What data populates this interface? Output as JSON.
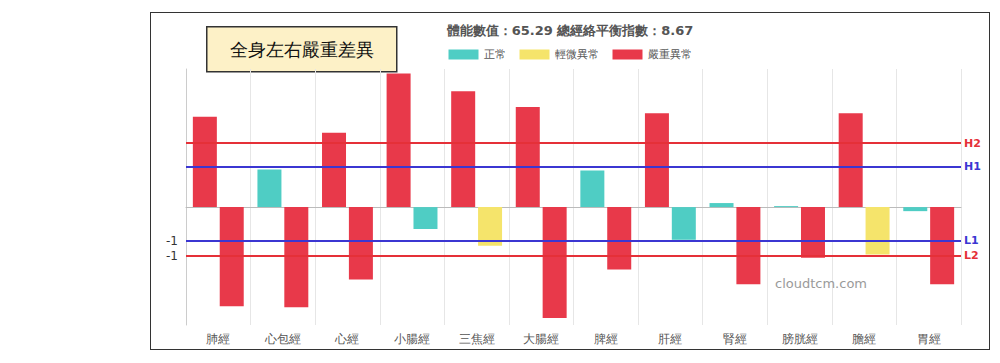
{
  "chart_data": {
    "type": "bar",
    "title": "體能數值：65.29 總經絡平衡指數：8.67",
    "annotation": "全身左右嚴重差異",
    "watermark": "cloudtcm.com",
    "categories": [
      "肺經",
      "心包經",
      "心經",
      "小腸經",
      "三焦經",
      "大腸經",
      "脾經",
      "肝經",
      "腎經",
      "膀胱經",
      "膽經",
      "胃經"
    ],
    "series": [
      {
        "values": [
          2.68,
          1.12,
          2.21,
          3.97,
          3.44,
          2.97,
          1.09,
          2.79,
          0.12,
          0.03,
          2.79,
          -0.12
        ],
        "colors": [
          "#e8394a",
          "#4fcdc4",
          "#e8394a",
          "#e8394a",
          "#e8394a",
          "#e8394a",
          "#4fcdc4",
          "#e8394a",
          "#4fcdc4",
          "#4fcdc4",
          "#e8394a",
          "#4fcdc4"
        ]
      },
      {
        "values": [
          -2.94,
          -2.97,
          -2.15,
          -0.65,
          -1.15,
          -3.29,
          -1.85,
          -0.97,
          -2.29,
          -1.5,
          -1.41,
          -2.29
        ],
        "colors": [
          "#e8394a",
          "#e8394a",
          "#e8394a",
          "#4fcdc4",
          "#f5e46b",
          "#e8394a",
          "#e8394a",
          "#4fcdc4",
          "#e8394a",
          "#e8394a",
          "#f5e46b",
          "#e8394a"
        ]
      }
    ],
    "status_legend": [
      {
        "name": "正常",
        "color": "#4fcdc4"
      },
      {
        "name": "輕微異常",
        "color": "#f5e46b"
      },
      {
        "name": "嚴重異常",
        "color": "#e8394a"
      }
    ],
    "reference_lines": [
      {
        "label": "H2",
        "value": 1.9,
        "color": "#e53038"
      },
      {
        "label": "H1",
        "value": 1.2,
        "color": "#3b36d2"
      },
      {
        "label": "L1",
        "value": -1,
        "color": "#3b36d2"
      },
      {
        "label": "L2",
        "value": -1.45,
        "color": "#e53038"
      }
    ],
    "ylim": [
      -3.5,
      4.1
    ],
    "yticks": [
      {
        "value": -1,
        "label": "-1"
      },
      {
        "value": -1.45,
        "label": "-1"
      }
    ],
    "grid": true,
    "legend": "top"
  }
}
